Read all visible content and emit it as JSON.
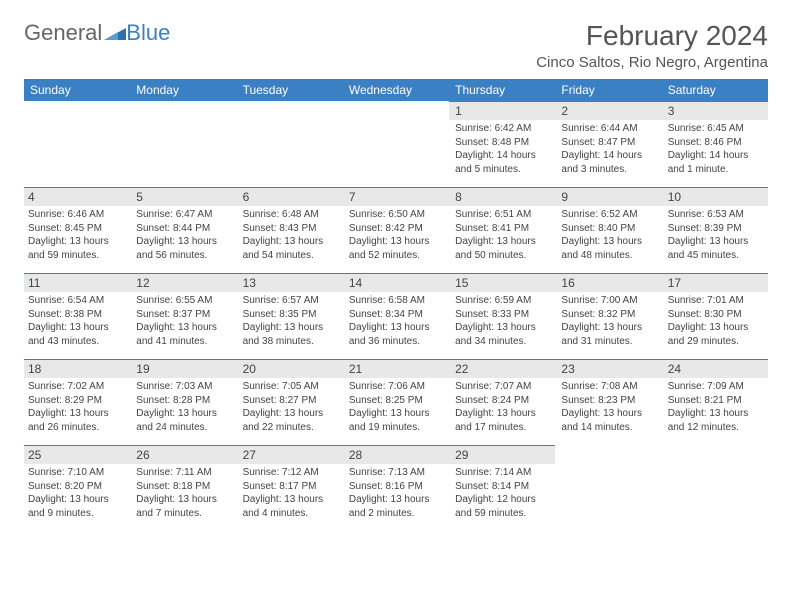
{
  "logo": {
    "general": "General",
    "blue": "Blue"
  },
  "title": "February 2024",
  "location": "Cinco Saltos, Rio Negro, Argentina",
  "colors": {
    "header_bg": "#3b7fc4",
    "header_fg": "#ffffff",
    "daynum_bg": "#e8e8e8",
    "border": "#3b7fc4",
    "text": "#444444",
    "background": "#ffffff"
  },
  "daynames": [
    "Sunday",
    "Monday",
    "Tuesday",
    "Wednesday",
    "Thursday",
    "Friday",
    "Saturday"
  ],
  "weeks": [
    [
      null,
      null,
      null,
      null,
      {
        "n": "1",
        "sr": "6:42 AM",
        "ss": "8:48 PM",
        "dl": "14 hours and 5 minutes."
      },
      {
        "n": "2",
        "sr": "6:44 AM",
        "ss": "8:47 PM",
        "dl": "14 hours and 3 minutes."
      },
      {
        "n": "3",
        "sr": "6:45 AM",
        "ss": "8:46 PM",
        "dl": "14 hours and 1 minute."
      }
    ],
    [
      {
        "n": "4",
        "sr": "6:46 AM",
        "ss": "8:45 PM",
        "dl": "13 hours and 59 minutes."
      },
      {
        "n": "5",
        "sr": "6:47 AM",
        "ss": "8:44 PM",
        "dl": "13 hours and 56 minutes."
      },
      {
        "n": "6",
        "sr": "6:48 AM",
        "ss": "8:43 PM",
        "dl": "13 hours and 54 minutes."
      },
      {
        "n": "7",
        "sr": "6:50 AM",
        "ss": "8:42 PM",
        "dl": "13 hours and 52 minutes."
      },
      {
        "n": "8",
        "sr": "6:51 AM",
        "ss": "8:41 PM",
        "dl": "13 hours and 50 minutes."
      },
      {
        "n": "9",
        "sr": "6:52 AM",
        "ss": "8:40 PM",
        "dl": "13 hours and 48 minutes."
      },
      {
        "n": "10",
        "sr": "6:53 AM",
        "ss": "8:39 PM",
        "dl": "13 hours and 45 minutes."
      }
    ],
    [
      {
        "n": "11",
        "sr": "6:54 AM",
        "ss": "8:38 PM",
        "dl": "13 hours and 43 minutes."
      },
      {
        "n": "12",
        "sr": "6:55 AM",
        "ss": "8:37 PM",
        "dl": "13 hours and 41 minutes."
      },
      {
        "n": "13",
        "sr": "6:57 AM",
        "ss": "8:35 PM",
        "dl": "13 hours and 38 minutes."
      },
      {
        "n": "14",
        "sr": "6:58 AM",
        "ss": "8:34 PM",
        "dl": "13 hours and 36 minutes."
      },
      {
        "n": "15",
        "sr": "6:59 AM",
        "ss": "8:33 PM",
        "dl": "13 hours and 34 minutes."
      },
      {
        "n": "16",
        "sr": "7:00 AM",
        "ss": "8:32 PM",
        "dl": "13 hours and 31 minutes."
      },
      {
        "n": "17",
        "sr": "7:01 AM",
        "ss": "8:30 PM",
        "dl": "13 hours and 29 minutes."
      }
    ],
    [
      {
        "n": "18",
        "sr": "7:02 AM",
        "ss": "8:29 PM",
        "dl": "13 hours and 26 minutes."
      },
      {
        "n": "19",
        "sr": "7:03 AM",
        "ss": "8:28 PM",
        "dl": "13 hours and 24 minutes."
      },
      {
        "n": "20",
        "sr": "7:05 AM",
        "ss": "8:27 PM",
        "dl": "13 hours and 22 minutes."
      },
      {
        "n": "21",
        "sr": "7:06 AM",
        "ss": "8:25 PM",
        "dl": "13 hours and 19 minutes."
      },
      {
        "n": "22",
        "sr": "7:07 AM",
        "ss": "8:24 PM",
        "dl": "13 hours and 17 minutes."
      },
      {
        "n": "23",
        "sr": "7:08 AM",
        "ss": "8:23 PM",
        "dl": "13 hours and 14 minutes."
      },
      {
        "n": "24",
        "sr": "7:09 AM",
        "ss": "8:21 PM",
        "dl": "13 hours and 12 minutes."
      }
    ],
    [
      {
        "n": "25",
        "sr": "7:10 AM",
        "ss": "8:20 PM",
        "dl": "13 hours and 9 minutes."
      },
      {
        "n": "26",
        "sr": "7:11 AM",
        "ss": "8:18 PM",
        "dl": "13 hours and 7 minutes."
      },
      {
        "n": "27",
        "sr": "7:12 AM",
        "ss": "8:17 PM",
        "dl": "13 hours and 4 minutes."
      },
      {
        "n": "28",
        "sr": "7:13 AM",
        "ss": "8:16 PM",
        "dl": "13 hours and 2 minutes."
      },
      {
        "n": "29",
        "sr": "7:14 AM",
        "ss": "8:14 PM",
        "dl": "12 hours and 59 minutes."
      },
      null,
      null
    ]
  ],
  "labels": {
    "sunrise": "Sunrise:",
    "sunset": "Sunset:",
    "daylight": "Daylight:"
  }
}
